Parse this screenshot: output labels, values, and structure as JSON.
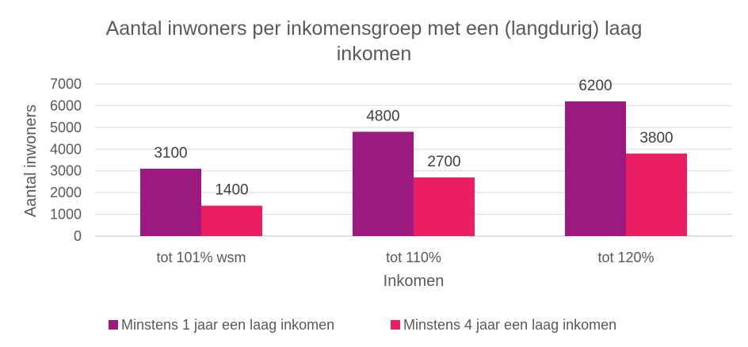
{
  "chart_data": {
    "type": "bar",
    "title": "Aantal inwoners per inkomensgroep met een (langdurig) laag inkomen",
    "title_lines": [
      "Aantal inwoners per inkomensgroep met een (langdurig) laag",
      "inkomen"
    ],
    "xlabel": "Inkomen",
    "ylabel": "Aantal inwoners",
    "categories": [
      "tot 101% wsm",
      "tot 110%",
      "tot 120%"
    ],
    "ylim": [
      0,
      7000
    ],
    "yticks": [
      0,
      1000,
      2000,
      3000,
      4000,
      5000,
      6000,
      7000
    ],
    "grid": true,
    "legend_position": "bottom",
    "series": [
      {
        "name": "Minstens 1 jaar een laag inkomen",
        "values": [
          3100,
          4800,
          6200
        ],
        "color": "#9C1A7F"
      },
      {
        "name": "Minstens 4 jaar een laag inkomen",
        "values": [
          1400,
          2700,
          3800
        ],
        "color": "#E91E63"
      }
    ]
  },
  "colors": {
    "gridline": "#D9D9D9",
    "axis": "#BFBFBF",
    "text": "#595959"
  }
}
